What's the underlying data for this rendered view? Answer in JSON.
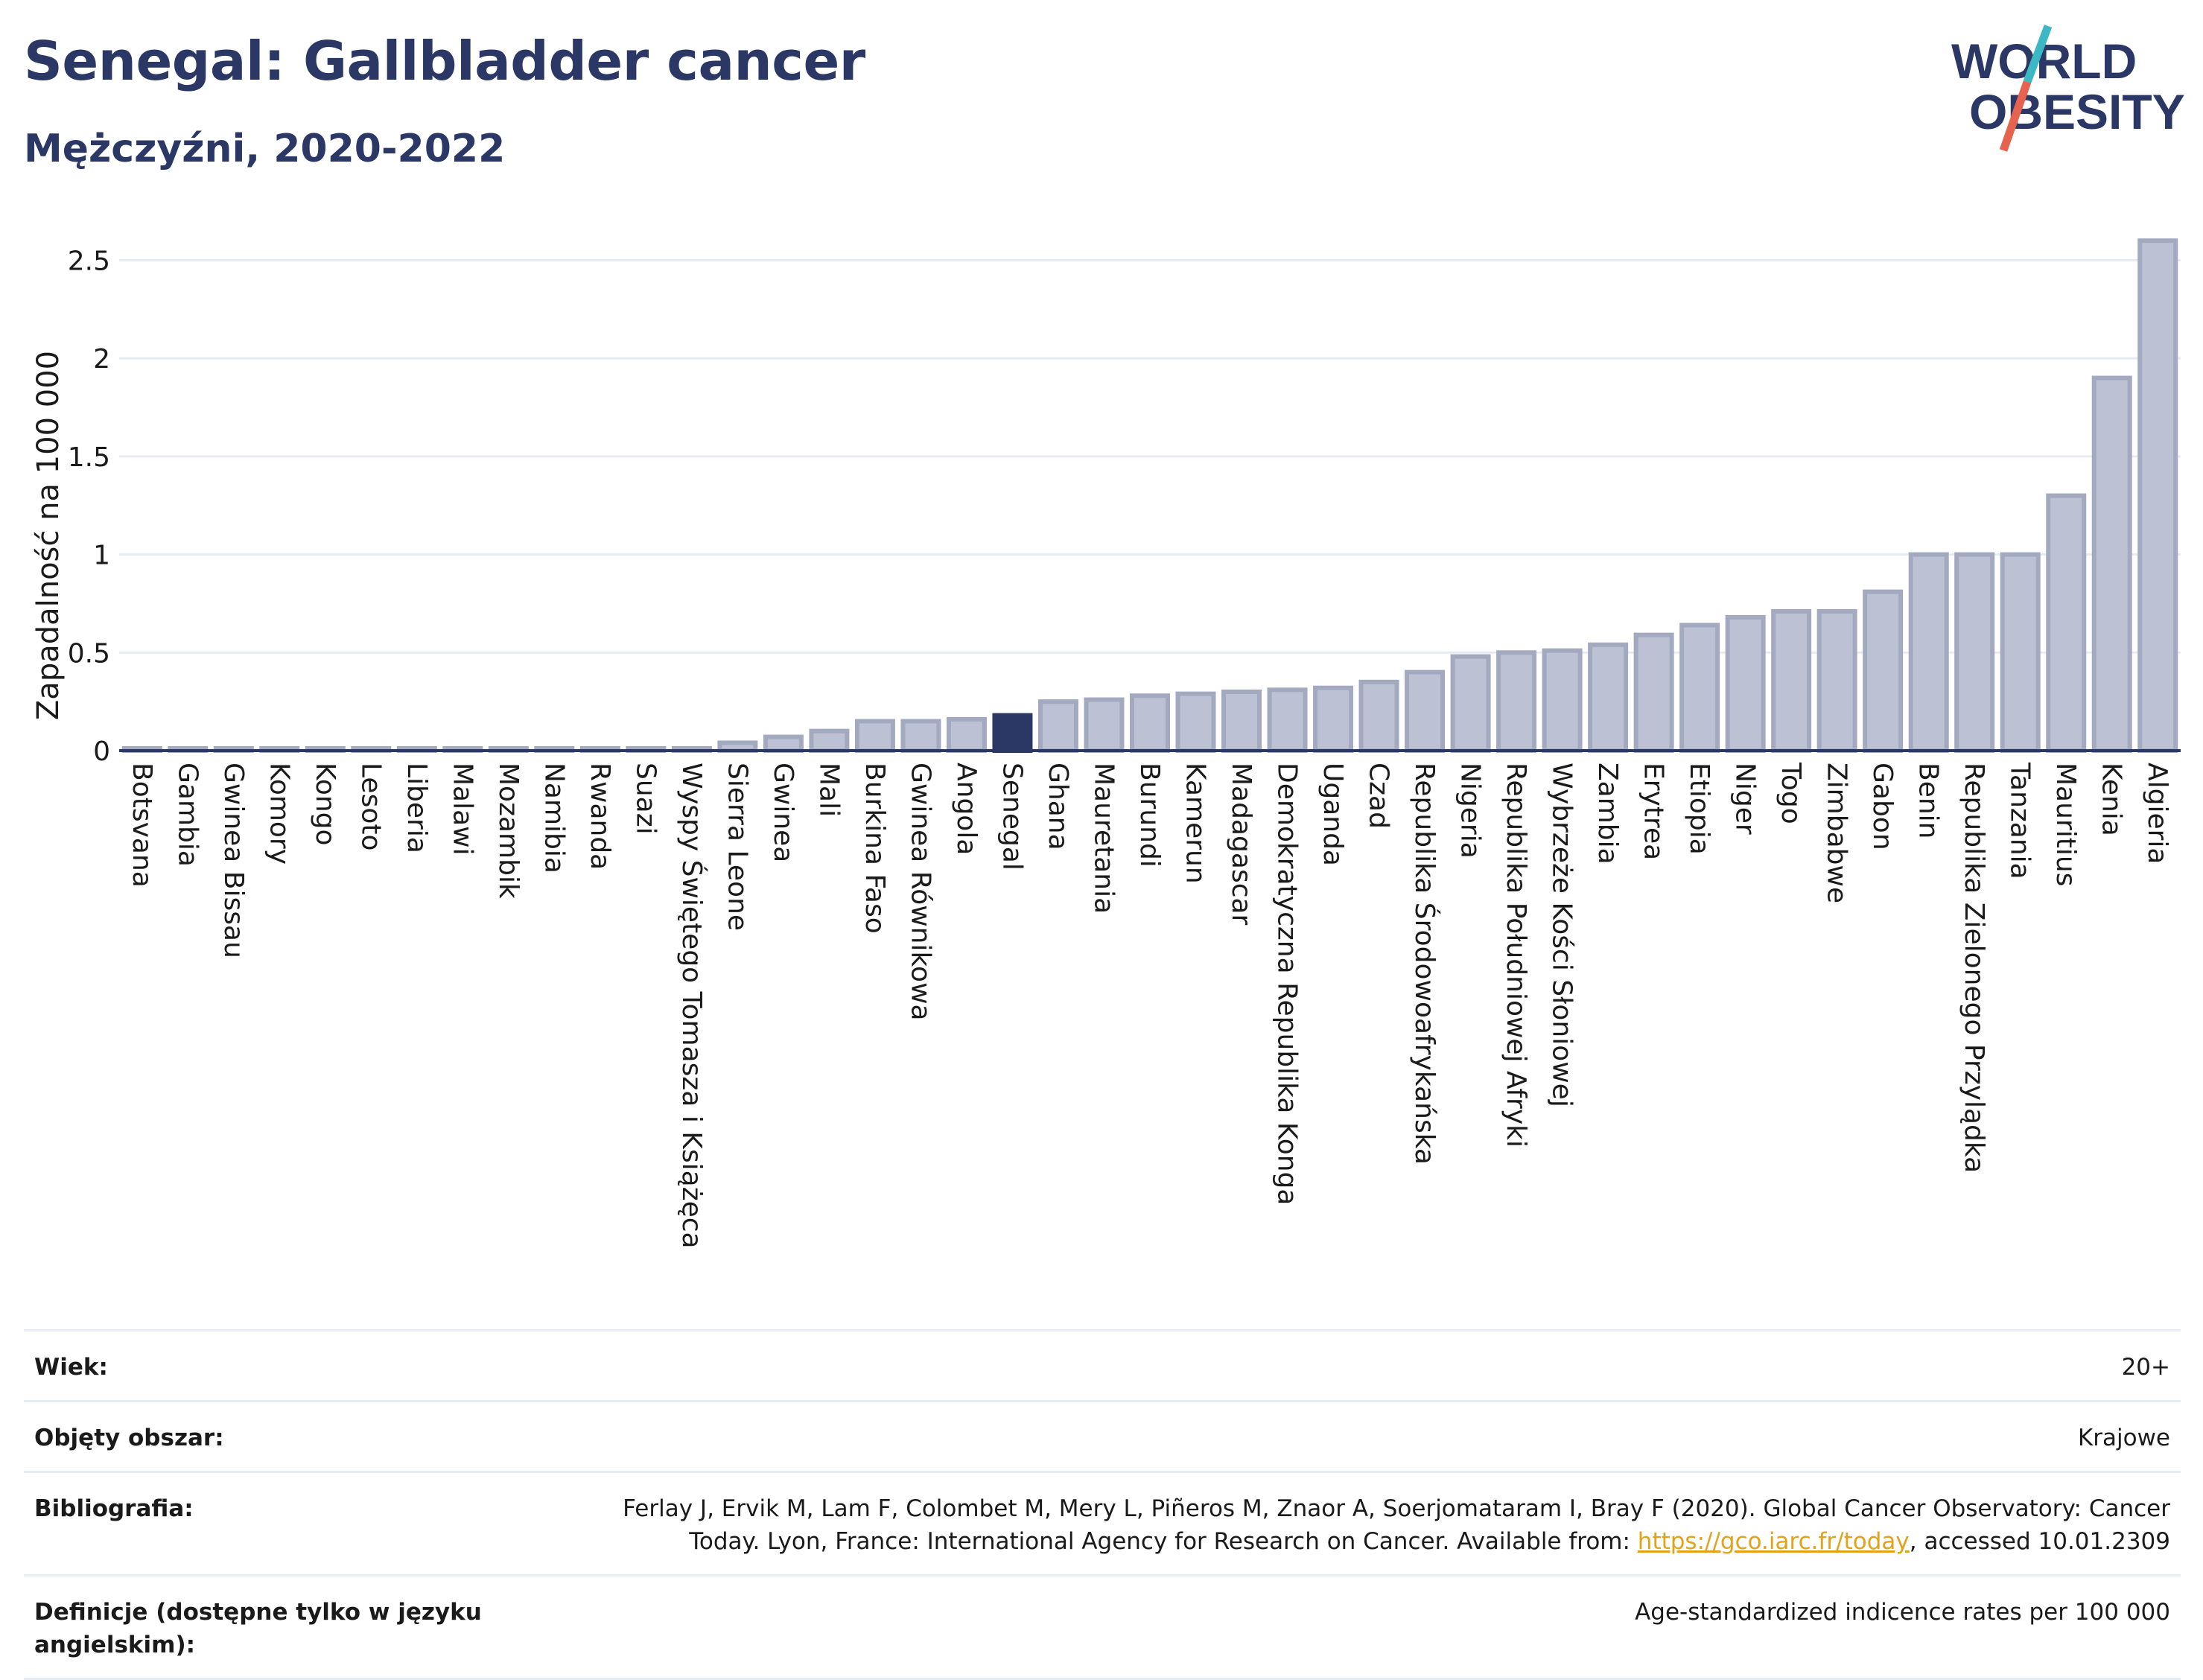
{
  "header": {
    "title": "Senegal: Gallbladder cancer",
    "subtitle": "Mężczyźni, 2020-2022"
  },
  "logo": {
    "line1": "WORLD",
    "line2": "OBESITY"
  },
  "colors": {
    "highlight": "#2b3765",
    "bar": "#bcc2d3",
    "bar_stroke": "#a3a9bf",
    "axis": "#2b3765",
    "grid": "#e6ebf2",
    "logo_teal": "#3bb8c3",
    "logo_red": "#e5634f"
  },
  "chart_data": {
    "type": "bar",
    "title": "",
    "xlabel": "",
    "ylabel": "Zapadalność na 100 000",
    "ylim": [
      0,
      2.65
    ],
    "yticks": [
      0,
      0.5,
      1,
      1.5,
      2,
      2.5
    ],
    "ytick_labels": [
      "0",
      "0.5",
      "1",
      "1.5",
      "2",
      "2.5"
    ],
    "grid": true,
    "highlight": "Senegal",
    "categories": [
      "Botsvana",
      "Gambia",
      "Gwinea Bissau",
      "Komory",
      "Kongo",
      "Lesoto",
      "Liberia",
      "Malawi",
      "Mozambik",
      "Namibia",
      "Rwanda",
      "Suazi",
      "Wyspy Świętego Tomasza i Książęca",
      "Sierra Leone",
      "Gwinea",
      "Mali",
      "Burkina Faso",
      "Gwinea Równikowa",
      "Angola",
      "Senegal",
      "Ghana",
      "Mauretania",
      "Burundi",
      "Kamerun",
      "Madagascar",
      "Demokratyczna Republika Konga",
      "Uganda",
      "Czad",
      "Republika Środowoafrykańska",
      "Nigeria",
      "Republika Południowej Afryki",
      "Wybrzeże Kości Słoniowej",
      "Zambia",
      "Erytrea",
      "Etiopia",
      "Niger",
      "Togo",
      "Zimbabwe",
      "Gabon",
      "Benin",
      "Republika Zielonego Przylądka",
      "Tanzania",
      "Mauritius",
      "Kenia",
      "Algieria"
    ],
    "values": [
      0.01,
      0.01,
      0.01,
      0.01,
      0.01,
      0.01,
      0.01,
      0.01,
      0.01,
      0.01,
      0.01,
      0.01,
      0.01,
      0.04,
      0.07,
      0.1,
      0.15,
      0.15,
      0.16,
      0.18,
      0.25,
      0.26,
      0.28,
      0.29,
      0.3,
      0.31,
      0.32,
      0.35,
      0.4,
      0.48,
      0.5,
      0.51,
      0.54,
      0.59,
      0.64,
      0.68,
      0.71,
      0.71,
      0.81,
      1.0,
      1.0,
      1.0,
      1.3,
      1.9,
      2.6
    ]
  },
  "meta": [
    {
      "label": "Wiek:",
      "value": "20+"
    },
    {
      "label": "Objęty obszar:",
      "value": "Krajowe"
    },
    {
      "label": "Bibliografia:",
      "value_line1": "Ferlay J, Ervik M, Lam F, Colombet M, Mery L, Piñeros M, Znaor A, Soerjomataram I, Bray F (2020). Global Cancer Observatory: Cancer",
      "value_line2_pre": "Today. Lyon, France: International Agency for Research on Cancer. Available from: ",
      "link": "https://gco.iarc.fr/today",
      "value_line2_post": ", accessed 10.01.2309"
    },
    {
      "label": "Definicje (dostępne tylko w języku angielskim):",
      "value": "Age-standardized indicence rates per 100 000"
    }
  ]
}
